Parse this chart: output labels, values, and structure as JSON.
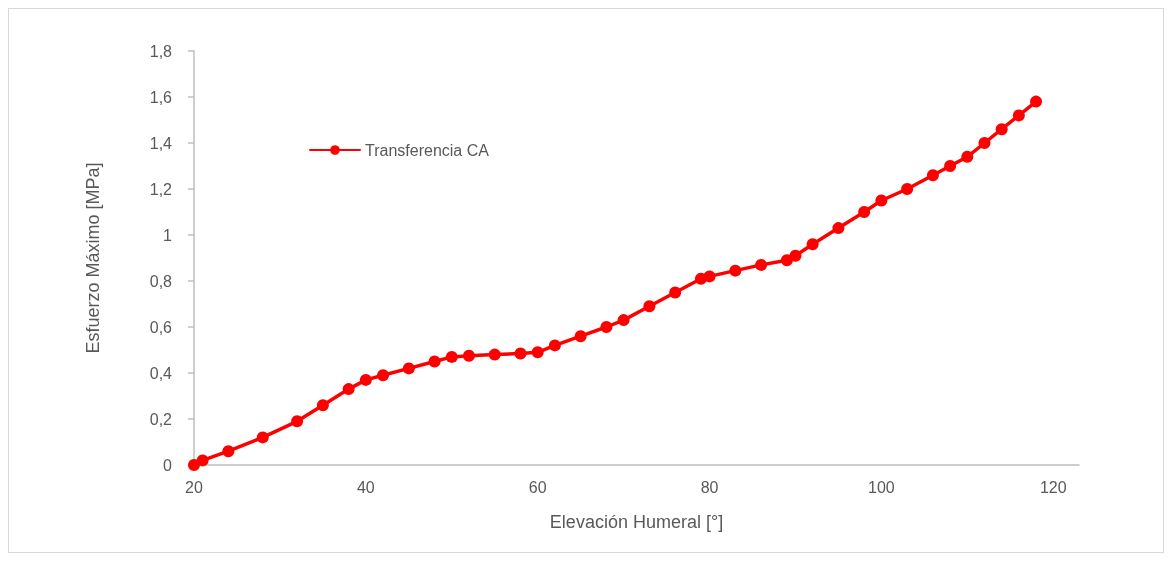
{
  "chart_data": {
    "type": "line",
    "xlabel": "Elevación Humeral [°]",
    "ylabel": "Esfuerzo Máximo [MPa]",
    "x": [
      20,
      21,
      24,
      28,
      32,
      35,
      38,
      40,
      42,
      45,
      48,
      50,
      52,
      55,
      58,
      60,
      62,
      65,
      68,
      70,
      73,
      76,
      79,
      80,
      83,
      86,
      89,
      90,
      92,
      95,
      98,
      100,
      103,
      106,
      108,
      110,
      112,
      114,
      116,
      118
    ],
    "series": [
      {
        "name": "Transferencia CA",
        "color": "#ff0000",
        "values": [
          0,
          0.02,
          0.06,
          0.12,
          0.19,
          0.26,
          0.33,
          0.37,
          0.39,
          0.42,
          0.45,
          0.47,
          0.475,
          0.48,
          0.485,
          0.49,
          0.52,
          0.56,
          0.6,
          0.63,
          0.69,
          0.75,
          0.81,
          0.82,
          0.845,
          0.87,
          0.89,
          0.91,
          0.96,
          1.03,
          1.1,
          1.15,
          1.2,
          1.26,
          1.3,
          1.34,
          1.4,
          1.46,
          1.52,
          1.58
        ]
      }
    ],
    "xlim": [
      20,
      123
    ],
    "xticks": [
      20,
      40,
      60,
      80,
      100,
      120
    ],
    "ylim": [
      0,
      1.8
    ],
    "yticks": [
      {
        "value": 0,
        "label": "0"
      },
      {
        "value": 0.2,
        "label": "0,2"
      },
      {
        "value": 0.4,
        "label": "0,4"
      },
      {
        "value": 0.6,
        "label": "0,6"
      },
      {
        "value": 0.8,
        "label": "0,8"
      },
      {
        "value": 1,
        "label": "1"
      },
      {
        "value": 1.2,
        "label": "1,2"
      },
      {
        "value": 1.4,
        "label": "1,4"
      },
      {
        "value": 1.6,
        "label": "1,6"
      },
      {
        "value": 1.8,
        "label": "1,8"
      }
    ],
    "legend": "top left",
    "marker": "circle",
    "line_style": "solid"
  }
}
